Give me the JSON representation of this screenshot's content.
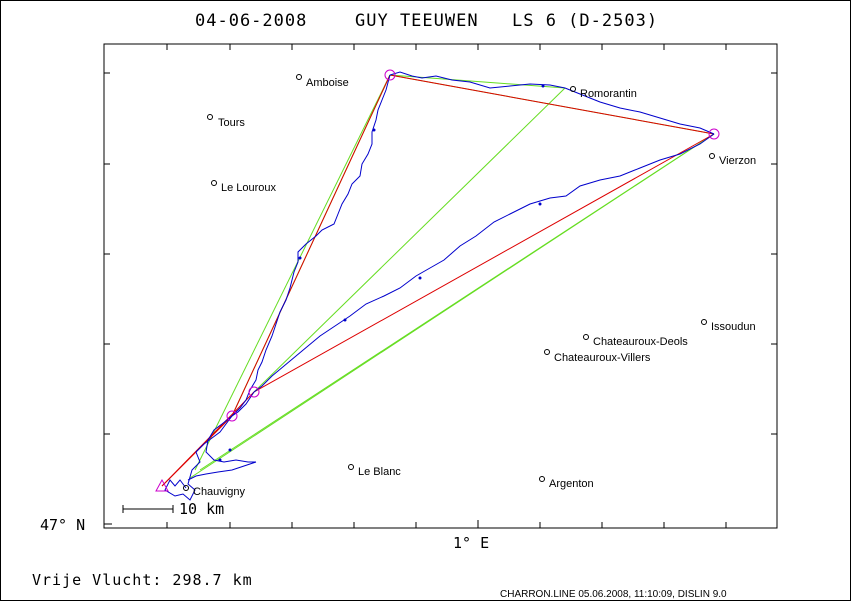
{
  "header": {
    "date": "04-06-2008",
    "pilot": "GUY TEEUWEN",
    "glider": "LS 6 (D-2503)"
  },
  "axes": {
    "lat_label": "47° N",
    "lon_label": "1° E"
  },
  "scale": {
    "label": "10 km"
  },
  "footer": {
    "distance": "Vrije Vlucht:  298.7 km",
    "info": "CHARRON.LINE 05.06.2008, 11:10:09, DISLIN 9.0"
  },
  "towns": [
    {
      "name": "Amboise"
    },
    {
      "name": "Romorantin"
    },
    {
      "name": "Tours"
    },
    {
      "name": "Vierzon"
    },
    {
      "name": "Le Louroux"
    },
    {
      "name": "Issoudun"
    },
    {
      "name": "Chateauroux-Deols"
    },
    {
      "name": "Chateauroux-Villers"
    },
    {
      "name": "Le Blanc"
    },
    {
      "name": "Chauvigny"
    },
    {
      "name": "Argenton"
    }
  ],
  "colors": {
    "track": "#0000cc",
    "task": "#dd0000",
    "sector": "#66dd22",
    "turnpoint": "#cc00cc"
  }
}
